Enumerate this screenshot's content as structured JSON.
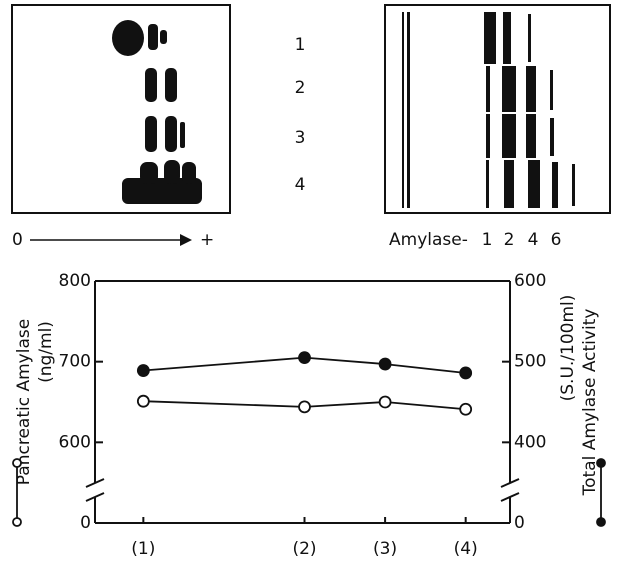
{
  "gel_left": {
    "lanes": [
      "1",
      "2",
      "3",
      "4"
    ],
    "axis_start": "0",
    "axis_end": "+"
  },
  "gel_right": {
    "label": "Amylase-",
    "bands": [
      "1",
      "2",
      "4",
      "6"
    ]
  },
  "chart_data": {
    "type": "line",
    "ylabel": [
      "Pancreatic Amylase",
      "(ng/ml)"
    ],
    "y2label": [
      "Total Amylase Activity",
      "(S.U./100ml)"
    ],
    "x": [
      1,
      3,
      4,
      5
    ],
    "xlim": [
      0.4,
      5.55
    ],
    "xticks": [
      {
        "value": 1,
        "label": "(1)"
      },
      {
        "value": 3,
        "label": "(2)"
      },
      {
        "value": 4,
        "label": "(3)"
      },
      {
        "value": 5,
        "label": "(4)"
      }
    ],
    "ylim": [
      0,
      800
    ],
    "yticks": [
      0,
      600,
      700,
      800
    ],
    "ybreak": [
      0,
      500
    ],
    "y2lim": [
      0,
      600
    ],
    "y2ticks": [
      0,
      400,
      500,
      600
    ],
    "y2break": [
      0,
      300
    ],
    "series": [
      {
        "color": "#111111",
        "marker": "open",
        "values": [
          651,
          644,
          650,
          641
        ]
      },
      {
        "color": "#111111",
        "marker": "filled",
        "axis": "y2",
        "values": [
          489,
          505,
          497,
          486
        ]
      }
    ]
  }
}
